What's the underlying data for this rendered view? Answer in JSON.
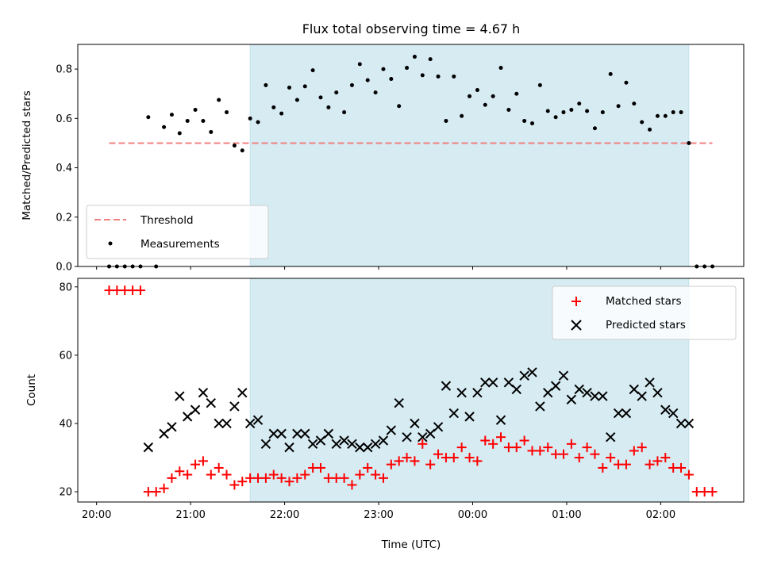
{
  "chart_data": [
    {
      "type": "scatter",
      "title": "Flux total observing time = 4.67 h",
      "ylabel": "Matched/Predicted stars",
      "xlabel": "",
      "ylim": [
        0,
        0.9
      ],
      "yticks": [
        0.0,
        0.2,
        0.4,
        0.6,
        0.8
      ],
      "ytick_labels": [
        "0.0",
        "0.2",
        "0.4",
        "0.6",
        "0.8"
      ],
      "xlim": [
        "19:48",
        "02:53"
      ],
      "highlight_span": [
        "21:38",
        "02:18"
      ],
      "threshold": {
        "name": "Threshold",
        "value": 0.5,
        "x": [
          "20:08",
          "02:33"
        ],
        "color": "#f08080"
      },
      "series": [
        {
          "name": "Measurements",
          "color": "#000000",
          "x": [
            "20:08",
            "20:13",
            "20:18",
            "20:23",
            "20:28",
            "20:33",
            "20:38",
            "20:43",
            "20:48",
            "20:53",
            "20:58",
            "21:03",
            "21:08",
            "21:13",
            "21:18",
            "21:23",
            "21:28",
            "21:33",
            "21:38",
            "21:43",
            "21:48",
            "21:53",
            "21:58",
            "22:03",
            "22:08",
            "22:13",
            "22:18",
            "22:23",
            "22:28",
            "22:33",
            "22:38",
            "22:43",
            "22:48",
            "22:53",
            "22:58",
            "23:03",
            "23:08",
            "23:13",
            "23:18",
            "23:23",
            "23:28",
            "23:33",
            "23:38",
            "23:43",
            "23:48",
            "23:53",
            "23:58",
            "00:03",
            "00:08",
            "00:13",
            "00:18",
            "00:23",
            "00:28",
            "00:33",
            "00:38",
            "00:43",
            "00:48",
            "00:53",
            "00:58",
            "01:03",
            "01:08",
            "01:13",
            "01:18",
            "01:23",
            "01:28",
            "01:33",
            "01:38",
            "01:43",
            "01:48",
            "01:53",
            "01:58",
            "02:03",
            "02:08",
            "02:13",
            "02:18",
            "02:23",
            "02:28",
            "02:33"
          ],
          "values": [
            0,
            0,
            0,
            0,
            0,
            0.605,
            0,
            0.565,
            0.615,
            0.54,
            0.59,
            0.635,
            0.59,
            0.545,
            0.675,
            0.625,
            0.49,
            0.47,
            0.6,
            0.585,
            0.735,
            0.645,
            0.62,
            0.725,
            0.675,
            0.73,
            0.795,
            0.685,
            0.645,
            0.705,
            0.625,
            0.735,
            0.82,
            0.755,
            0.705,
            0.8,
            0.76,
            0.65,
            0.805,
            0.85,
            0.775,
            0.84,
            0.77,
            0.59,
            0.77,
            0.61,
            0.69,
            0.715,
            0.655,
            0.69,
            0.805,
            0.635,
            0.7,
            0.59,
            0.58,
            0.735,
            0.63,
            0.605,
            0.625,
            0.635,
            0.66,
            0.63,
            0.56,
            0.625,
            0.78,
            0.65,
            0.745,
            0.66,
            0.585,
            0.555,
            0.61,
            0.61,
            0.625,
            0.625,
            0.5,
            0,
            0,
            0
          ]
        }
      ],
      "legend": {
        "position": "lower left",
        "entries": [
          "Threshold",
          "Measurements"
        ]
      }
    },
    {
      "type": "scatter",
      "title": "",
      "xlabel": "Time (UTC)",
      "ylabel": "Count",
      "ylim": [
        17,
        82.5
      ],
      "yticks": [
        20,
        40,
        60,
        80
      ],
      "ytick_labels": [
        "20",
        "40",
        "60",
        "80"
      ],
      "xticks": [
        "20:00",
        "21:00",
        "22:00",
        "23:00",
        "00:00",
        "01:00",
        "02:00"
      ],
      "xtick_labels": [
        "20:00",
        "21:00",
        "22:00",
        "23:00",
        "00:00",
        "01:00",
        "02:00"
      ],
      "xlim": [
        "19:48",
        "02:53"
      ],
      "highlight_span": [
        "21:38",
        "02:18"
      ],
      "series": [
        {
          "name": "Matched stars",
          "color": "#ff0000",
          "marker": "+",
          "x": [
            "20:08",
            "20:13",
            "20:18",
            "20:23",
            "20:28",
            "20:33",
            "20:38",
            "20:43",
            "20:48",
            "20:53",
            "20:58",
            "21:03",
            "21:08",
            "21:13",
            "21:18",
            "21:23",
            "21:28",
            "21:33",
            "21:38",
            "21:43",
            "21:48",
            "21:53",
            "21:58",
            "22:03",
            "22:08",
            "22:13",
            "22:18",
            "22:23",
            "22:28",
            "22:33",
            "22:38",
            "22:43",
            "22:48",
            "22:53",
            "22:58",
            "23:03",
            "23:08",
            "23:13",
            "23:18",
            "23:23",
            "23:28",
            "23:33",
            "23:38",
            "23:43",
            "23:48",
            "23:53",
            "23:58",
            "00:03",
            "00:08",
            "00:13",
            "00:18",
            "00:23",
            "00:28",
            "00:33",
            "00:38",
            "00:43",
            "00:48",
            "00:53",
            "00:58",
            "01:03",
            "01:08",
            "01:13",
            "01:18",
            "01:23",
            "01:28",
            "01:33",
            "01:38",
            "01:43",
            "01:48",
            "01:53",
            "01:58",
            "02:03",
            "02:08",
            "02:13",
            "02:18",
            "02:23",
            "02:28",
            "02:33"
          ],
          "values": [
            79,
            79,
            79,
            79,
            79,
            20,
            20,
            21,
            24,
            26,
            25,
            28,
            29,
            25,
            27,
            25,
            22,
            23,
            24,
            24,
            24,
            25,
            24,
            23,
            24,
            25,
            27,
            27,
            24,
            24,
            24,
            22,
            25,
            27,
            25,
            24,
            28,
            29,
            30,
            29,
            34,
            28,
            31,
            30,
            30,
            33,
            30,
            29,
            35,
            34,
            36,
            33,
            33,
            35,
            32,
            32,
            33,
            31,
            31,
            34,
            30,
            33,
            31,
            27,
            30,
            28,
            28,
            32,
            33,
            28,
            29,
            30,
            27,
            27,
            25,
            20,
            20,
            20
          ]
        },
        {
          "name": "Predicted stars",
          "color": "#000000",
          "marker": "x",
          "x": [
            "20:33",
            "20:43",
            "20:48",
            "20:53",
            "20:58",
            "21:03",
            "21:08",
            "21:13",
            "21:18",
            "21:23",
            "21:28",
            "21:33",
            "21:38",
            "21:43",
            "21:48",
            "21:53",
            "21:58",
            "22:03",
            "22:08",
            "22:13",
            "22:18",
            "22:23",
            "22:28",
            "22:33",
            "22:38",
            "22:43",
            "22:48",
            "22:53",
            "22:58",
            "23:03",
            "23:08",
            "23:13",
            "23:18",
            "23:23",
            "23:28",
            "23:33",
            "23:38",
            "23:43",
            "23:48",
            "23:53",
            "23:58",
            "00:03",
            "00:08",
            "00:13",
            "00:18",
            "00:23",
            "00:28",
            "00:33",
            "00:38",
            "00:43",
            "00:48",
            "00:53",
            "00:58",
            "01:03",
            "01:08",
            "01:13",
            "01:18",
            "01:23",
            "01:28",
            "01:33",
            "01:38",
            "01:43",
            "01:48",
            "01:53",
            "01:58",
            "02:03",
            "02:08",
            "02:13",
            "02:18"
          ],
          "values": [
            33,
            37,
            39,
            48,
            42,
            44,
            49,
            46,
            40,
            40,
            45,
            49,
            40,
            41,
            34,
            37,
            37,
            33,
            37,
            37,
            34,
            35,
            37,
            34,
            35,
            34,
            33,
            33,
            34,
            35,
            38,
            46,
            36,
            40,
            36,
            37,
            39,
            51,
            43,
            49,
            42,
            49,
            52,
            52,
            41,
            52,
            50,
            54,
            55,
            45,
            49,
            51,
            54,
            47,
            50,
            49,
            48,
            48,
            36,
            43,
            43,
            50,
            48,
            52,
            49,
            44,
            43,
            40,
            40
          ]
        }
      ],
      "legend": {
        "position": "upper right",
        "entries": [
          "Matched stars",
          "Predicted stars"
        ]
      }
    }
  ]
}
